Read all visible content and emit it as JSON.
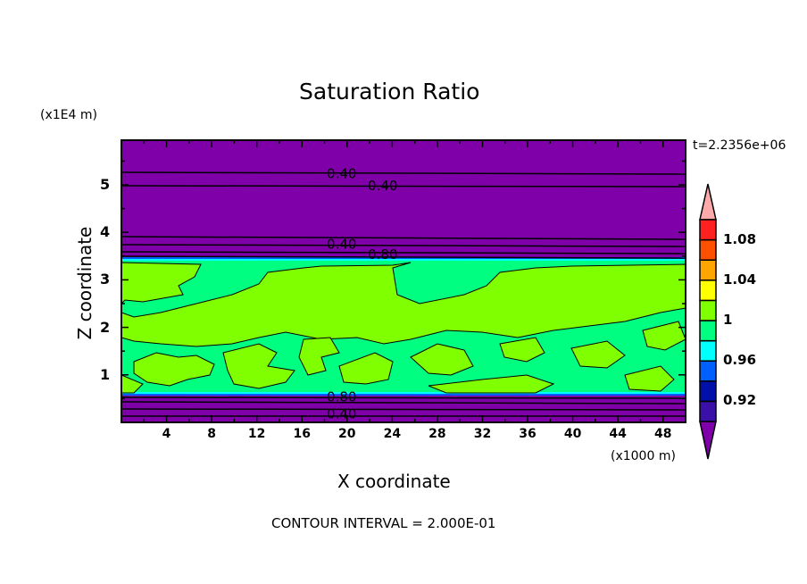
{
  "chart_data": {
    "type": "heatmap",
    "subtype": "filled-contour",
    "title": "Saturation Ratio",
    "xlabel": "X coordinate",
    "ylabel": "Z coordinate",
    "x_unit": "(x1000 m)",
    "y_unit": "(x1E4 m)",
    "xlim": [
      0,
      50
    ],
    "ylim": [
      0,
      5.94
    ],
    "x_ticks": [
      "4",
      "8",
      "12",
      "16",
      "20",
      "24",
      "28",
      "32",
      "36",
      "40",
      "44",
      "48"
    ],
    "x_tick_values": [
      4,
      8,
      12,
      16,
      20,
      24,
      28,
      32,
      36,
      40,
      44,
      48
    ],
    "y_ticks": [
      "1",
      "2",
      "3",
      "4",
      "5"
    ],
    "y_tick_values": [
      1,
      2,
      3,
      4,
      5
    ],
    "time_label": "t=2.2356e+06",
    "footer": "CONTOUR INTERVAL = 2.000E-01",
    "contour_labels": [
      {
        "text": "0.40",
        "x": 18.2,
        "z": 5.25
      },
      {
        "text": "0.40",
        "x": 18.2,
        "z": 5.0
      },
      {
        "text": "0.40",
        "x": 18.2,
        "z": 3.77
      },
      {
        "text": "0.80",
        "x": 18.2,
        "z": 3.55
      },
      {
        "text": "0.80",
        "x": 18.2,
        "z": 0.55
      },
      {
        "text": "0.40",
        "x": 18.2,
        "z": 0.2
      }
    ],
    "colorbar": {
      "levels": [
        0.9,
        0.92,
        0.94,
        0.96,
        0.98,
        1.0,
        1.02,
        1.04,
        1.06,
        1.08,
        1.1
      ],
      "labels": [
        {
          "text": "0.92",
          "value": 0.92
        },
        {
          "text": "0.96",
          "value": 0.96
        },
        {
          "text": "1",
          "value": 1.0
        },
        {
          "text": "1.04",
          "value": 1.04
        },
        {
          "text": "1.08",
          "value": 1.08
        }
      ],
      "colors": [
        "#3a10a8",
        "#0010a8",
        "#0060ff",
        "#00ffff",
        "#00ff80",
        "#80ff00",
        "#ffff00",
        "#ffa500",
        "#ff5000",
        "#ff2020"
      ],
      "under_color": "#7f00a8",
      "over_color": "#ffaaaa"
    },
    "regions": [
      {
        "range": "below 0.90",
        "z": [
          0,
          0.6
        ],
        "color": "#7f00a8"
      },
      {
        "range": "0.98-1.02 mixed",
        "z": [
          0.62,
          3.45
        ],
        "colors": [
          "#00ff80",
          "#80ff00"
        ]
      },
      {
        "range": "below 0.90",
        "z": [
          3.5,
          5.94
        ],
        "color": "#7f00a8"
      }
    ]
  }
}
